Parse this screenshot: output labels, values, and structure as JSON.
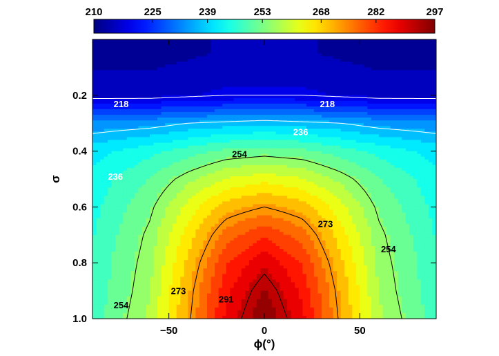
{
  "chart_data": {
    "type": "heatmap",
    "title": "",
    "xlabel": "ϕ(°)",
    "ylabel": "σ",
    "xlim": [
      -90,
      90
    ],
    "ylim": [
      0.0,
      1.0
    ],
    "y_inverted": true,
    "x_ticks": [
      -50,
      0,
      50
    ],
    "x_tick_labels": [
      "−50",
      "0",
      "50"
    ],
    "y_ticks": [
      0.2,
      0.4,
      0.6,
      0.8,
      1.0
    ],
    "y_tick_labels": [
      "0.2",
      "0.4",
      "0.6",
      "0.8",
      "1.0"
    ],
    "colorbar": {
      "min": 210,
      "max": 297,
      "tick_values": [
        210,
        225,
        239,
        253,
        268,
        282,
        297
      ],
      "tick_labels": [
        "210",
        "225",
        "239",
        "253",
        "268",
        "282",
        "297"
      ],
      "colormap": "jet",
      "location": "top"
    },
    "field_samples": {
      "phi": [
        -90,
        -60,
        -40,
        -20,
        0,
        20,
        40,
        60,
        90
      ],
      "sigma": [
        0.05,
        0.2,
        0.3,
        0.4,
        0.5,
        0.6,
        0.7,
        0.8,
        0.9,
        1.0
      ],
      "values": [
        [
          212,
          212,
          213,
          214,
          214,
          214,
          213,
          212,
          212
        ],
        [
          216,
          216,
          217,
          218,
          218,
          218,
          217,
          216,
          216
        ],
        [
          233,
          234,
          236,
          237,
          238,
          237,
          236,
          234,
          233
        ],
        [
          241,
          245,
          248,
          251,
          252,
          251,
          248,
          245,
          241
        ],
        [
          244,
          250,
          256,
          261,
          263,
          261,
          256,
          250,
          244
        ],
        [
          245,
          253,
          262,
          270,
          273,
          270,
          262,
          253,
          245
        ],
        [
          246,
          255,
          266,
          277,
          282,
          277,
          266,
          255,
          246
        ],
        [
          247,
          256,
          269,
          282,
          289,
          282,
          269,
          256,
          247
        ],
        [
          247,
          257,
          271,
          285,
          294,
          285,
          271,
          257,
          247
        ],
        [
          248,
          258,
          272,
          287,
          297,
          287,
          272,
          258,
          248
        ]
      ]
    },
    "contours": [
      {
        "level": 218,
        "label": "218",
        "color": "#ffffff",
        "labels_at": [
          {
            "phi": -75,
            "sigma": 0.23
          },
          {
            "phi": 33,
            "sigma": 0.23
          }
        ]
      },
      {
        "level": 236,
        "label": "236",
        "color": "#ffffff",
        "labels_at": [
          {
            "phi": -78,
            "sigma": 0.49
          },
          {
            "phi": 19,
            "sigma": 0.33
          }
        ]
      },
      {
        "level": 254,
        "label": "254",
        "color": "#000000",
        "labels_at": [
          {
            "phi": -13,
            "sigma": 0.41
          },
          {
            "phi": -75,
            "sigma": 0.95
          },
          {
            "phi": 65,
            "sigma": 0.75
          }
        ]
      },
      {
        "level": 273,
        "label": "273",
        "color": "#000000",
        "labels_at": [
          {
            "phi": -45,
            "sigma": 0.9
          },
          {
            "phi": 32,
            "sigma": 0.66
          }
        ]
      },
      {
        "level": 291,
        "label": "291",
        "color": "#000000",
        "labels_at": [
          {
            "phi": -20,
            "sigma": 0.93
          }
        ]
      }
    ]
  }
}
